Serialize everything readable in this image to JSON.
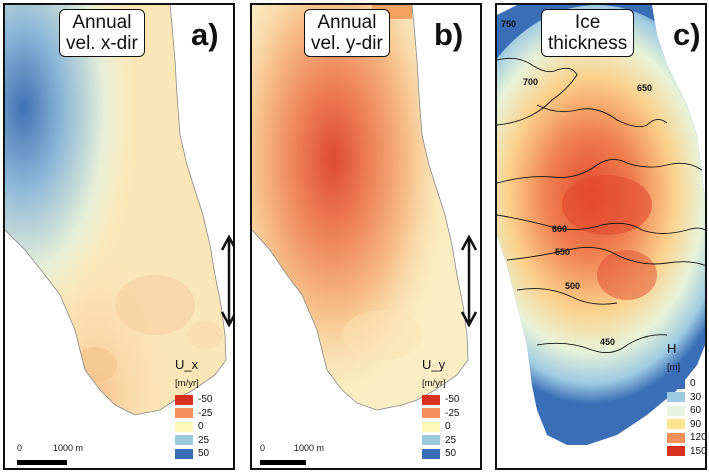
{
  "panels": [
    {
      "title": "Annual\nvel. x-dir",
      "letter": "a)",
      "legend": {
        "title": "U_x",
        "unit": "[m/yr]",
        "items": [
          {
            "label": "-50",
            "color": "#d7301f"
          },
          {
            "label": "-25",
            "color": "#f4905a"
          },
          {
            "label": "0",
            "color": "#fff7bc"
          },
          {
            "label": "25",
            "color": "#9ecae1"
          },
          {
            "label": "50",
            "color": "#3a6fb8"
          }
        ]
      },
      "scale": {
        "zero": "0",
        "distance": "1000 m"
      }
    },
    {
      "title": "Annual\nvel. y-dir",
      "letter": "b)",
      "legend": {
        "title": "U_y",
        "unit": "[m/yr]",
        "items": [
          {
            "label": "-50",
            "color": "#d7301f"
          },
          {
            "label": "-25",
            "color": "#f4905a"
          },
          {
            "label": "0",
            "color": "#fff7bc"
          },
          {
            "label": "25",
            "color": "#9ecae1"
          },
          {
            "label": "50",
            "color": "#3a6fb8"
          }
        ]
      },
      "scale": {
        "zero": "0",
        "distance": "1000 m"
      }
    },
    {
      "title": "Ice\nthickness",
      "letter": "c)",
      "legend": {
        "title": "H",
        "unit": "[m]",
        "items": [
          {
            "label": "0",
            "color": "#3a6fb8"
          },
          {
            "label": "30",
            "color": "#9ecae1"
          },
          {
            "label": "60",
            "color": "#e5f5e0"
          },
          {
            "label": "90",
            "color": "#fee391"
          },
          {
            "label": "120",
            "color": "#f4905a"
          },
          {
            "label": "150",
            "color": "#d7301f"
          }
        ]
      },
      "contours": [
        "750",
        "700",
        "650",
        "600",
        "550",
        "500",
        "450"
      ]
    }
  ]
}
